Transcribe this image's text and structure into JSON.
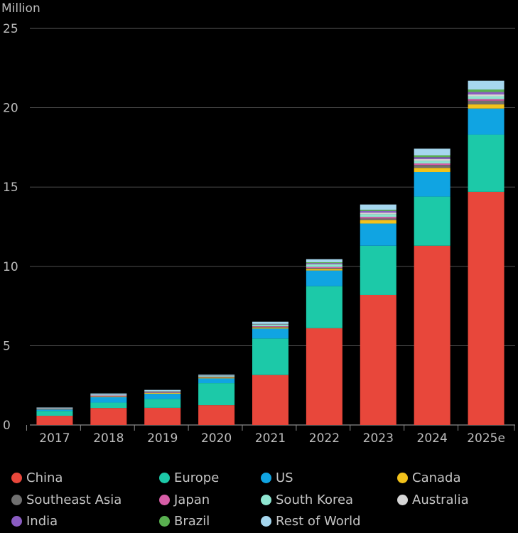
{
  "chart_data": {
    "type": "bar",
    "stacked": true,
    "ylabel": "Million",
    "ylim": [
      0,
      25
    ],
    "yticks": [
      0,
      5,
      10,
      15,
      20,
      25
    ],
    "grid": true,
    "legend_position": "bottom",
    "categories": [
      "2017",
      "2018",
      "2019",
      "2020",
      "2021",
      "2022",
      "2023",
      "2024",
      "2025e"
    ],
    "series": [
      {
        "name": "China",
        "color": "#e8473b",
        "values": [
          0.58,
          1.07,
          1.08,
          1.25,
          3.15,
          6.1,
          8.2,
          11.3,
          14.7
        ]
      },
      {
        "name": "Europe",
        "color": "#1cc9a8",
        "values": [
          0.31,
          0.34,
          0.56,
          1.39,
          2.3,
          2.65,
          3.1,
          3.1,
          3.6
        ]
      },
      {
        "name": "US",
        "color": "#10a4e2",
        "values": [
          0.09,
          0.35,
          0.33,
          0.3,
          0.63,
          0.99,
          1.4,
          1.55,
          1.65
        ]
      },
      {
        "name": "Canada",
        "color": "#f2c21b",
        "values": [
          0.02,
          0.04,
          0.05,
          0.05,
          0.07,
          0.1,
          0.22,
          0.26,
          0.27
        ]
      },
      {
        "name": "Southeast Asia",
        "color": "#707070",
        "values": [
          0.01,
          0.01,
          0.02,
          0.02,
          0.04,
          0.06,
          0.1,
          0.18,
          0.22
        ]
      },
      {
        "name": "Japan",
        "color": "#d65da6",
        "values": [
          0.02,
          0.05,
          0.04,
          0.03,
          0.04,
          0.06,
          0.1,
          0.1,
          0.11
        ]
      },
      {
        "name": "South Korea",
        "color": "#8fe6d1",
        "values": [
          0.01,
          0.03,
          0.04,
          0.05,
          0.1,
          0.16,
          0.17,
          0.17,
          0.17
        ]
      },
      {
        "name": "Australia",
        "color": "#d6d6d6",
        "values": [
          0.005,
          0.01,
          0.01,
          0.01,
          0.02,
          0.04,
          0.1,
          0.11,
          0.13
        ]
      },
      {
        "name": "India",
        "color": "#8a5cc2",
        "values": [
          0.002,
          0.003,
          0.005,
          0.005,
          0.01,
          0.05,
          0.1,
          0.11,
          0.14
        ]
      },
      {
        "name": "Brazil",
        "color": "#59b050",
        "values": [
          0.002,
          0.003,
          0.005,
          0.005,
          0.01,
          0.05,
          0.07,
          0.12,
          0.16
        ]
      },
      {
        "name": "Rest of World",
        "color": "#a6d7ef",
        "values": [
          0.05,
          0.08,
          0.07,
          0.06,
          0.14,
          0.19,
          0.34,
          0.42,
          0.55
        ]
      }
    ]
  }
}
